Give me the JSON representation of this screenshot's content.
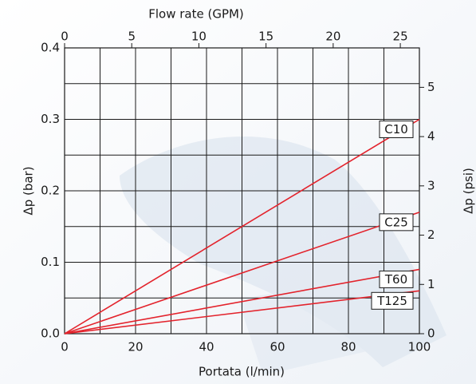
{
  "chart_data": {
    "type": "line",
    "xlabel": "Portata (l/min)",
    "ylabel": "Δp (bar)",
    "x2label": "Flow rate (GPM)",
    "y2label": "Δp (psi)",
    "x": [
      0,
      100
    ],
    "series": [
      {
        "name": "C10",
        "color": "#e3232c",
        "values": [
          0,
          0.3
        ]
      },
      {
        "name": "C25",
        "color": "#e3232c",
        "values": [
          0,
          0.17
        ]
      },
      {
        "name": "T60",
        "color": "#e3232c",
        "values": [
          0,
          0.09
        ]
      },
      {
        "name": "T125",
        "color": "#e3232c",
        "values": [
          0,
          0.06
        ]
      }
    ],
    "xlim": [
      0,
      100
    ],
    "xticks": [
      0,
      20,
      40,
      60,
      80,
      100
    ],
    "xminor": [
      10,
      30,
      50,
      70,
      90
    ],
    "ylim": [
      0,
      0.4
    ],
    "yticks": [
      {
        "value": 0,
        "label": "0.0"
      },
      0.1,
      0.2,
      0.3,
      0.4
    ],
    "yminor": [
      0.05,
      0.15,
      0.25,
      0.35
    ],
    "x2lim": [
      0,
      26.42
    ],
    "x2ticks": [
      0,
      5,
      10,
      15,
      20,
      25
    ],
    "y2lim": [
      0,
      5.8
    ],
    "y2ticks": [
      0,
      1,
      2,
      3,
      4,
      5
    ],
    "grid": true
  }
}
